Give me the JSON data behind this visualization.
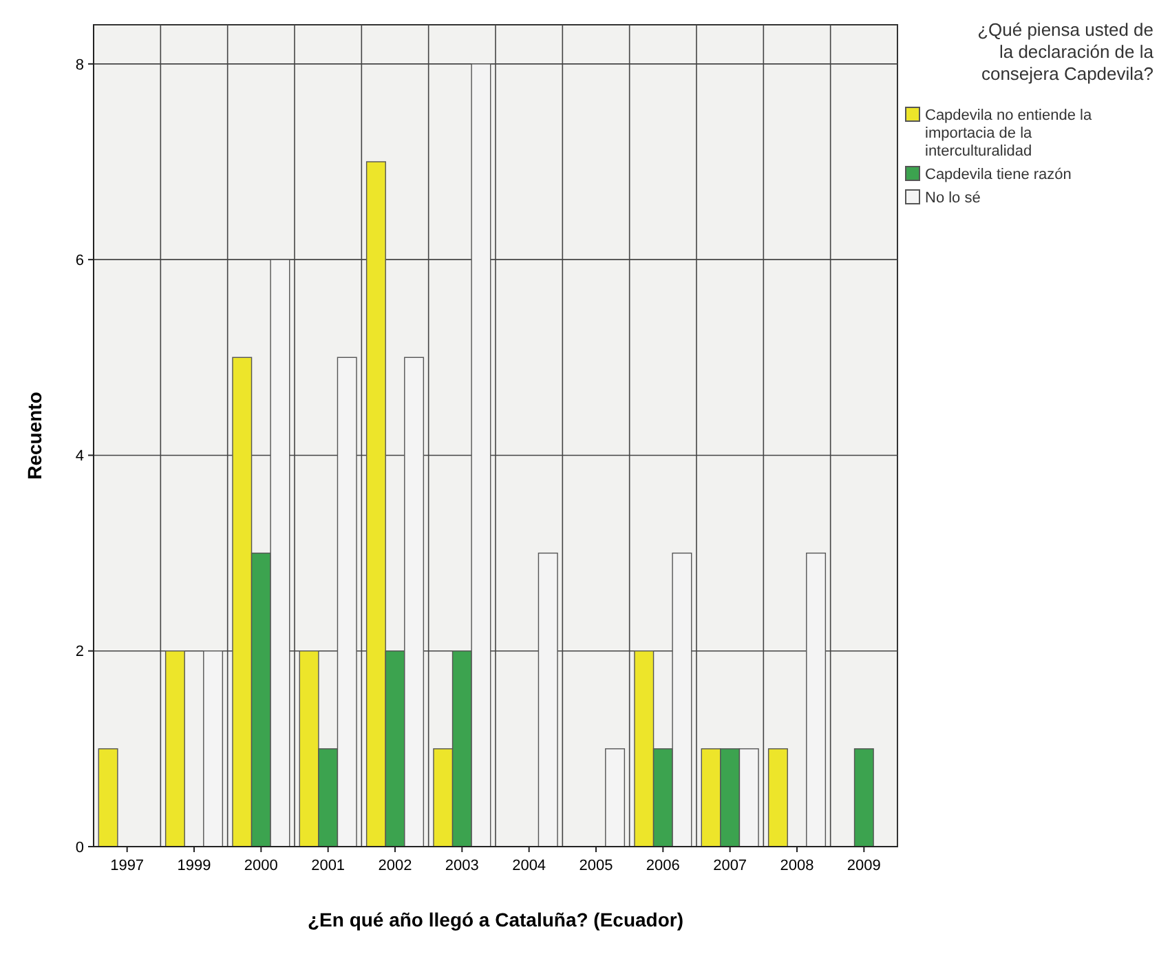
{
  "chart_data": {
    "type": "bar",
    "xlabel": "¿En qué año llegó a Cataluña? (Ecuador)",
    "ylabel": "Recuento",
    "legend_title": "¿Qué piensa usted de la declaración de la consejera Capdevila?",
    "categories": [
      "1997",
      "1999",
      "2000",
      "2001",
      "2002",
      "2003",
      "2004",
      "2005",
      "2006",
      "2007",
      "2008",
      "2009"
    ],
    "series": [
      {
        "name": "Capdevila no entiende la importacia de la interculturalidad",
        "color": "#ede52a",
        "values": [
          1,
          2,
          5,
          2,
          7,
          1,
          0,
          0,
          2,
          1,
          1,
          0
        ]
      },
      {
        "name": "Capdevila tiene razón",
        "color": "#3ca34f",
        "values": [
          0,
          0,
          3,
          1,
          2,
          2,
          0,
          0,
          1,
          1,
          0,
          1
        ]
      },
      {
        "name": "No lo sé",
        "color": "#f4f4f4",
        "values": [
          0,
          2,
          6,
          5,
          5,
          8,
          3,
          1,
          3,
          1,
          3,
          0
        ]
      }
    ],
    "ylim": [
      0,
      8.4
    ],
    "yticks": [
      0,
      2,
      4,
      6,
      8
    ],
    "grid": true,
    "legend": "right"
  }
}
